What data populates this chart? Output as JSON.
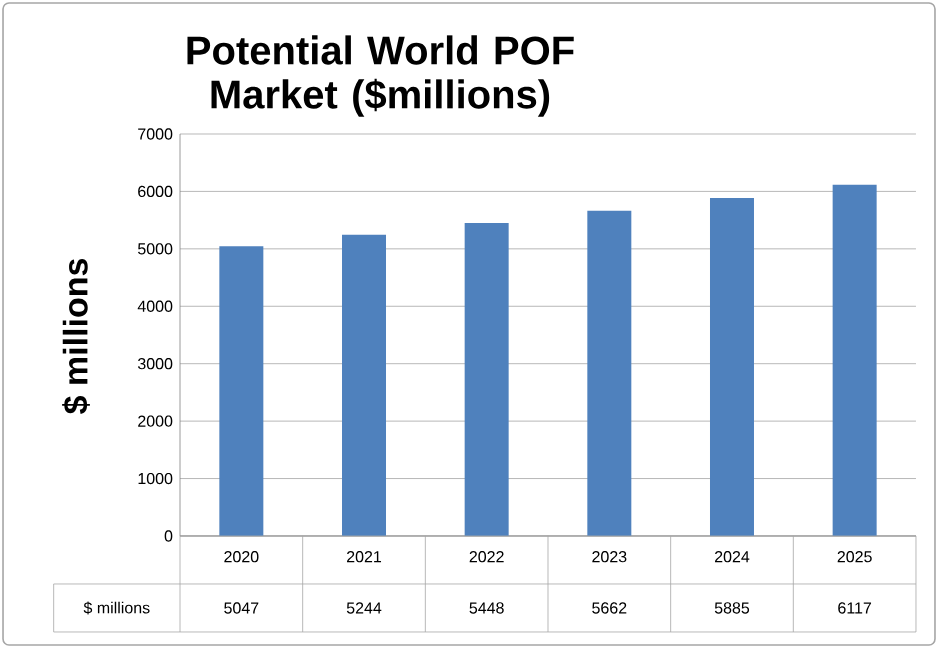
{
  "chart_data": {
    "type": "bar",
    "title": "Potential World POF Market ($millions)",
    "ylabel": "$ millions",
    "categories": [
      "2020",
      "2021",
      "2022",
      "2023",
      "2024",
      "2025"
    ],
    "series": [
      {
        "name": "$ millions",
        "color": "#4f81bd",
        "values": [
          5047,
          5244,
          5448,
          5662,
          5885,
          6117
        ]
      }
    ],
    "ylim": [
      0,
      7000
    ],
    "yticks": [
      0,
      1000,
      2000,
      3000,
      4000,
      5000,
      6000,
      7000
    ],
    "grid": "y",
    "data_labels": true
  }
}
